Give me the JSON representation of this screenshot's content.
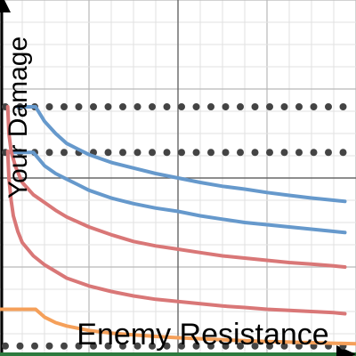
{
  "chart_data": {
    "type": "line",
    "title": "",
    "xlabel": "Enemy Resistance",
    "ylabel": "Your Damage",
    "xlim": [
      -8,
      8
    ],
    "ylim": [
      -8,
      8
    ],
    "grid": true,
    "legend": "none",
    "series": [
      {
        "color": "#6699cc",
        "points": [
          [
            -7.2,
            3.2
          ],
          [
            -6.4,
            3.2
          ],
          [
            -6.0,
            2.55
          ],
          [
            -5.5,
            2.0
          ],
          [
            -5.0,
            1.55
          ],
          [
            -4.5,
            1.3
          ],
          [
            -4.0,
            1.05
          ],
          [
            -3.0,
            0.7
          ],
          [
            -2.0,
            0.45
          ],
          [
            -1.0,
            0.2
          ],
          [
            0.0,
            0.0
          ],
          [
            1.0,
            -0.2
          ],
          [
            2.0,
            -0.37
          ],
          [
            3.0,
            -0.5
          ],
          [
            4.0,
            -0.65
          ],
          [
            5.0,
            -0.78
          ],
          [
            6.0,
            -0.9
          ],
          [
            7.0,
            -1.0
          ],
          [
            7.5,
            -1.05
          ]
        ]
      },
      {
        "color": "#6699cc",
        "points": [
          [
            -7.6,
            1.15
          ],
          [
            -7.3,
            1.15
          ],
          [
            -6.5,
            1.15
          ],
          [
            -6.0,
            0.55
          ],
          [
            -5.5,
            0.2
          ],
          [
            -5.0,
            -0.05
          ],
          [
            -4.5,
            -0.3
          ],
          [
            -4.0,
            -0.55
          ],
          [
            -3.0,
            -0.9
          ],
          [
            -2.0,
            -1.15
          ],
          [
            -1.0,
            -1.35
          ],
          [
            0.0,
            -1.5
          ],
          [
            1.0,
            -1.7
          ],
          [
            2.0,
            -1.85
          ],
          [
            3.0,
            -2.0
          ],
          [
            4.0,
            -2.1
          ],
          [
            5.0,
            -2.2
          ],
          [
            6.0,
            -2.3
          ],
          [
            7.0,
            -2.4
          ],
          [
            7.5,
            -2.45
          ]
        ]
      },
      {
        "color": "#d97777",
        "points": [
          [
            -7.65,
            3.2
          ],
          [
            -7.6,
            2.0
          ],
          [
            -7.5,
            1.2
          ],
          [
            -7.3,
            0.5
          ],
          [
            -7.0,
            -0.2
          ],
          [
            -6.5,
            -0.75
          ],
          [
            -6.0,
            -1.1
          ],
          [
            -5.5,
            -1.45
          ],
          [
            -5.0,
            -1.75
          ],
          [
            -4.0,
            -2.2
          ],
          [
            -3.0,
            -2.55
          ],
          [
            -2.0,
            -2.85
          ],
          [
            -1.0,
            -3.05
          ],
          [
            0.0,
            -3.2
          ],
          [
            1.0,
            -3.35
          ],
          [
            2.0,
            -3.5
          ],
          [
            3.0,
            -3.6
          ],
          [
            4.0,
            -3.7
          ],
          [
            5.0,
            -3.8
          ],
          [
            6.0,
            -3.87
          ],
          [
            7.0,
            -3.95
          ],
          [
            7.5,
            -4.0
          ]
        ]
      },
      {
        "color": "#d97777",
        "points": [
          [
            -7.65,
            1.2
          ],
          [
            -7.6,
            0.0
          ],
          [
            -7.5,
            -1.0
          ],
          [
            -7.4,
            -1.7
          ],
          [
            -7.2,
            -2.4
          ],
          [
            -7.0,
            -2.9
          ],
          [
            -6.5,
            -3.5
          ],
          [
            -6.0,
            -3.9
          ],
          [
            -5.0,
            -4.5
          ],
          [
            -4.0,
            -4.85
          ],
          [
            -3.0,
            -5.1
          ],
          [
            -2.0,
            -5.3
          ],
          [
            -1.0,
            -5.45
          ],
          [
            0.0,
            -5.55
          ],
          [
            1.0,
            -5.65
          ],
          [
            2.0,
            -5.75
          ],
          [
            3.0,
            -5.82
          ],
          [
            4.0,
            -5.9
          ],
          [
            5.0,
            -5.95
          ],
          [
            6.0,
            -6.0
          ],
          [
            7.0,
            -6.05
          ],
          [
            7.5,
            -6.1
          ]
        ]
      },
      {
        "color": "#f5a05a",
        "points": [
          [
            -8.0,
            -5.9
          ],
          [
            -7.0,
            -5.9
          ],
          [
            -6.4,
            -5.9
          ],
          [
            -6.0,
            -6.25
          ],
          [
            -5.5,
            -6.5
          ],
          [
            -5.0,
            -6.65
          ],
          [
            -4.0,
            -6.85
          ],
          [
            -3.0,
            -6.97
          ],
          [
            -2.0,
            -7.05
          ],
          [
            -1.0,
            -7.12
          ],
          [
            0.0,
            -7.18
          ],
          [
            2.0,
            -7.27
          ],
          [
            4.0,
            -7.35
          ],
          [
            6.0,
            -7.4
          ],
          [
            8.0,
            -7.45
          ]
        ]
      }
    ],
    "reference_lines": [
      {
        "y": 3.2,
        "style": "dotted"
      },
      {
        "y": 1.15,
        "style": "dotted"
      },
      {
        "y": -7.55,
        "style": "dotted"
      }
    ]
  }
}
